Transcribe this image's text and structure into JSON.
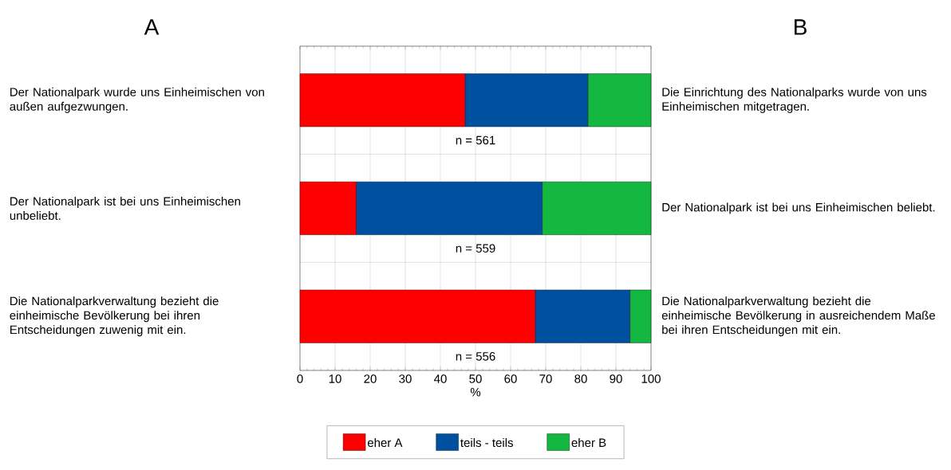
{
  "chart_data": {
    "type": "bar",
    "orientation": "horizontal",
    "stacked": true,
    "categories": [
      "Der Nationalpark wurde uns Einheimischen von außen aufgezwungen.",
      "Der Nationalpark ist bei uns Einheimischen unbeliebt.",
      "Die Nationalparkverwaltung bezieht die einheimische Bevölkerung bei ihren Entscheidungen zuwenig mit ein."
    ],
    "y2_categories": [
      "Die Einrichtung des Nationalparks wurde von uns Einheimischen mitgetragen.",
      "Der Nationalpark ist bei uns Einheimischen beliebt.",
      "Die Nationalparkverwaltung bezieht die einheimische Bevölkerung in ausreichendem Maße bei ihren Entscheidungen mit ein."
    ],
    "series": [
      {
        "name": "eher A",
        "color": "#ff0000",
        "values": [
          47,
          16,
          67
        ]
      },
      {
        "name": "teils - teils",
        "color": "#0050a0",
        "values": [
          35,
          53,
          27
        ]
      },
      {
        "name": "eher B",
        "color": "#14b840",
        "values": [
          18,
          31,
          6
        ]
      }
    ],
    "xlim": [
      0,
      100
    ],
    "xticks": [
      0,
      10,
      20,
      30,
      40,
      50,
      60,
      70,
      80,
      90,
      100
    ],
    "xlabel": "%",
    "grid": true,
    "legend": "bottom",
    "annotations": [
      "A",
      "B",
      "n = 561",
      "n = 559",
      "n = 556"
    ]
  }
}
